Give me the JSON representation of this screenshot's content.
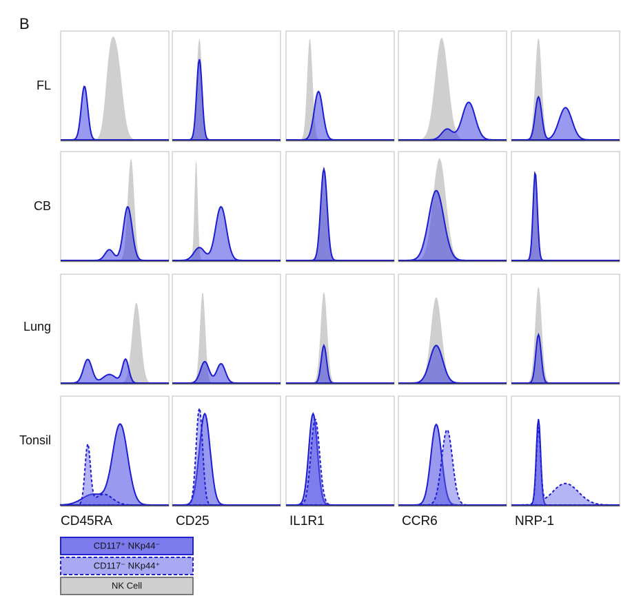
{
  "panel_label": "B",
  "rows": [
    "FL",
    "CB",
    "Lung",
    "Tonsil"
  ],
  "columns": [
    "CD45RA",
    "CD25",
    "IL1R1",
    "CCR6",
    "NRP-1"
  ],
  "legend": [
    "CD117⁺ NKp44⁻",
    "CD117⁻ NKp44⁺",
    "NK Cell"
  ]
}
